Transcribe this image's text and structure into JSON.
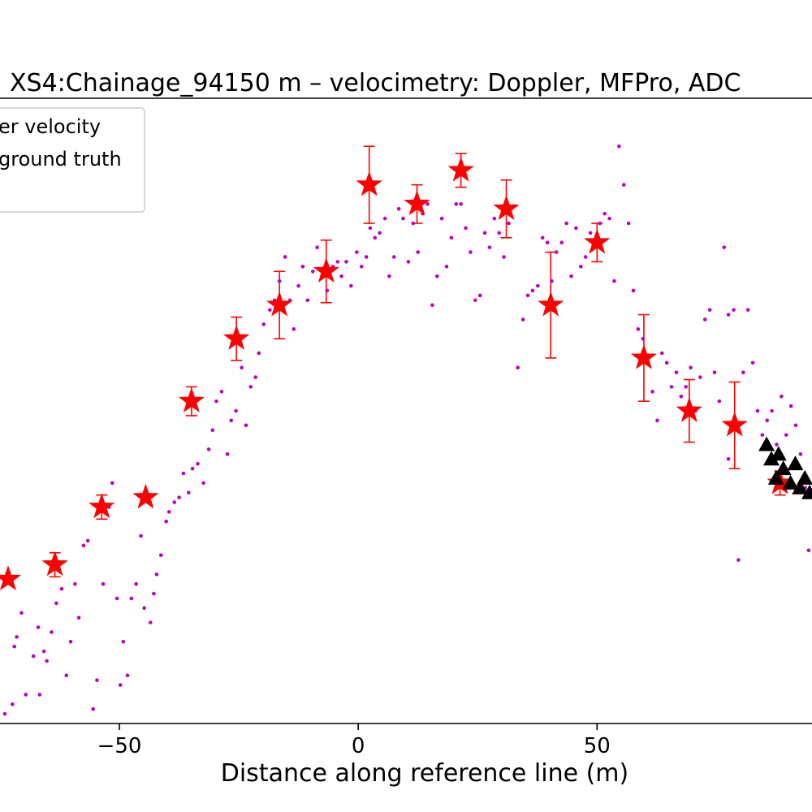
{
  "chart_data": {
    "type": "scatter",
    "title": "XS4:Chainage_94150 m – velocimetry: Doppler, MFPro, ADC",
    "xlabel": "Distance along reference line (m)",
    "ylabel": "",
    "xlim": [
      -75,
      95
    ],
    "ylim": [
      0,
      1.3
    ],
    "x_ticks": [
      -50,
      0,
      50
    ],
    "x_tick_labels": [
      "−50",
      "0",
      "50"
    ],
    "grid": false,
    "legend": {
      "placement": "top-left",
      "entries": [
        "er velocity",
        "ground truth"
      ]
    },
    "colors": {
      "stars": "#ff0000",
      "errorbars": "#ff0000",
      "dots": "#bf00bf",
      "triangles": "#000000"
    },
    "series": [
      {
        "marker": "star",
        "points": [
          {
            "x": -73.3,
            "y": 0.3,
            "err": 0
          },
          {
            "x": -63.5,
            "y": 0.33,
            "err": 0.025
          },
          {
            "x": -53.7,
            "y": 0.45,
            "err": 0.025
          },
          {
            "x": -44.5,
            "y": 0.47,
            "err": 0
          },
          {
            "x": -34.9,
            "y": 0.67,
            "err": 0.03
          },
          {
            "x": -25.5,
            "y": 0.8,
            "err": 0.045
          },
          {
            "x": -16.5,
            "y": 0.87,
            "err": 0.07
          },
          {
            "x": -6.7,
            "y": 0.94,
            "err": 0.065
          },
          {
            "x": 2.3,
            "y": 1.12,
            "err": 0.08
          },
          {
            "x": 12.3,
            "y": 1.08,
            "err": 0.04
          },
          {
            "x": 21.5,
            "y": 1.15,
            "err": 0.035
          },
          {
            "x": 31.0,
            "y": 1.07,
            "err": 0.06
          },
          {
            "x": 40.3,
            "y": 0.87,
            "err": 0.11
          },
          {
            "x": 50.0,
            "y": 1.0,
            "err": 0.04
          },
          {
            "x": 59.8,
            "y": 0.76,
            "err": 0.09
          },
          {
            "x": 69.3,
            "y": 0.65,
            "err": 0.065
          },
          {
            "x": 78.8,
            "y": 0.62,
            "err": 0.09
          },
          {
            "x": 88.3,
            "y": 0.5,
            "err": 0.025
          }
        ]
      },
      {
        "marker": "dot",
        "points": [
          {
            "x": -74,
            "y": 0.02
          },
          {
            "x": -72.4,
            "y": 0.04
          },
          {
            "x": -70.5,
            "y": 0.23
          },
          {
            "x": -71.5,
            "y": 0.18
          },
          {
            "x": -72,
            "y": 0.16
          },
          {
            "x": -69.6,
            "y": 0.06
          },
          {
            "x": -68,
            "y": 0.14
          },
          {
            "x": -67,
            "y": 0.2
          },
          {
            "x": -66.7,
            "y": 0.06
          },
          {
            "x": -65.8,
            "y": 0.15
          },
          {
            "x": -65.2,
            "y": 0.13
          },
          {
            "x": -64.2,
            "y": 0.19
          },
          {
            "x": -63.2,
            "y": 0.25
          },
          {
            "x": -62.1,
            "y": 0.28
          },
          {
            "x": -61.1,
            "y": 0.1
          },
          {
            "x": -60.2,
            "y": 0.17
          },
          {
            "x": -59.3,
            "y": 0.29
          },
          {
            "x": -58.5,
            "y": 0.22
          },
          {
            "x": -57.5,
            "y": 0.37
          },
          {
            "x": -56.6,
            "y": 0.38
          },
          {
            "x": -55.5,
            "y": 0.03
          },
          {
            "x": -54.7,
            "y": 0.09
          },
          {
            "x": -53.4,
            "y": 0.29
          },
          {
            "x": -52.2,
            "y": 0.45
          },
          {
            "x": -51.5,
            "y": 0.5
          },
          {
            "x": -50.5,
            "y": 0.26
          },
          {
            "x": -49.8,
            "y": 0.08
          },
          {
            "x": -49.2,
            "y": 0.17
          },
          {
            "x": -48.3,
            "y": 0.1
          },
          {
            "x": -47.5,
            "y": 0.26
          },
          {
            "x": -46.5,
            "y": 0.29
          },
          {
            "x": -45.5,
            "y": 0.39
          },
          {
            "x": -44.8,
            "y": 0.24
          },
          {
            "x": -43.5,
            "y": 0.21
          },
          {
            "x": -42.8,
            "y": 0.27
          },
          {
            "x": -42.2,
            "y": 0.31
          },
          {
            "x": -41.3,
            "y": 0.35
          },
          {
            "x": -40.2,
            "y": 0.42
          },
          {
            "x": -39.6,
            "y": 0.44
          },
          {
            "x": -38.5,
            "y": 0.46
          },
          {
            "x": -37.5,
            "y": 0.47
          },
          {
            "x": -36.6,
            "y": 0.52
          },
          {
            "x": -35.5,
            "y": 0.48
          },
          {
            "x": -34.7,
            "y": 0.53
          },
          {
            "x": -33.6,
            "y": 0.54
          },
          {
            "x": -32.4,
            "y": 0.5
          },
          {
            "x": -31.3,
            "y": 0.57
          },
          {
            "x": -30.5,
            "y": 0.61
          },
          {
            "x": -29.7,
            "y": 0.67
          },
          {
            "x": -28.6,
            "y": 0.69
          },
          {
            "x": -27.4,
            "y": 0.56
          },
          {
            "x": -26.6,
            "y": 0.63
          },
          {
            "x": -25.6,
            "y": 0.65
          },
          {
            "x": -24.4,
            "y": 0.74
          },
          {
            "x": -23.5,
            "y": 0.62
          },
          {
            "x": -22.5,
            "y": 0.7
          },
          {
            "x": -21.5,
            "y": 0.72
          },
          {
            "x": -20.8,
            "y": 0.77
          },
          {
            "x": -19.8,
            "y": 0.83
          },
          {
            "x": -18.5,
            "y": 0.86
          },
          {
            "x": -17.5,
            "y": 0.88
          },
          {
            "x": -16.5,
            "y": 0.92
          },
          {
            "x": -15.3,
            "y": 0.97
          },
          {
            "x": -14.3,
            "y": 0.88
          },
          {
            "x": -13.5,
            "y": 0.82
          },
          {
            "x": -12.5,
            "y": 0.91
          },
          {
            "x": -11.6,
            "y": 0.95
          },
          {
            "x": -10.6,
            "y": 0.88
          },
          {
            "x": -9.5,
            "y": 0.94
          },
          {
            "x": -8.6,
            "y": 0.99
          },
          {
            "x": -7.5,
            "y": 0.93
          },
          {
            "x": -6.5,
            "y": 0.9
          },
          {
            "x": -5.3,
            "y": 0.95
          },
          {
            "x": -4.3,
            "y": 0.96
          },
          {
            "x": -3.5,
            "y": 0.93
          },
          {
            "x": -2.5,
            "y": 0.96
          },
          {
            "x": -1.5,
            "y": 0.91
          },
          {
            "x": -0.3,
            "y": 0.98
          },
          {
            "x": 0.7,
            "y": 0.95
          },
          {
            "x": 1.7,
            "y": 0.97
          },
          {
            "x": 2.5,
            "y": 1.03
          },
          {
            "x": 3.5,
            "y": 1.01
          },
          {
            "x": 4.5,
            "y": 1.02
          },
          {
            "x": 5.6,
            "y": 1.05
          },
          {
            "x": 6.5,
            "y": 0.93
          },
          {
            "x": 7.5,
            "y": 0.97
          },
          {
            "x": 8.5,
            "y": 1.07
          },
          {
            "x": 9.4,
            "y": 1.05
          },
          {
            "x": 10.5,
            "y": 0.96
          },
          {
            "x": 11.5,
            "y": 1.04
          },
          {
            "x": 12.5,
            "y": 0.98
          },
          {
            "x": 13.5,
            "y": 1.06
          },
          {
            "x": 14.5,
            "y": 1.08
          },
          {
            "x": 15.5,
            "y": 0.87
          },
          {
            "x": 16.5,
            "y": 0.93
          },
          {
            "x": 17.5,
            "y": 1.05
          },
          {
            "x": 18.5,
            "y": 0.95
          },
          {
            "x": 19.5,
            "y": 1.01
          },
          {
            "x": 20.5,
            "y": 1.08
          },
          {
            "x": 21.5,
            "y": 1.08
          },
          {
            "x": 22.5,
            "y": 1.03
          },
          {
            "x": 23.5,
            "y": 0.98
          },
          {
            "x": 24.5,
            "y": 0.88
          },
          {
            "x": 25.5,
            "y": 0.89
          },
          {
            "x": 26.5,
            "y": 1.02
          },
          {
            "x": 27.5,
            "y": 0.99
          },
          {
            "x": 28.5,
            "y": 1.05
          },
          {
            "x": 29.5,
            "y": 1.02
          },
          {
            "x": 30.5,
            "y": 0.97
          },
          {
            "x": 31.5,
            "y": 1.04
          },
          {
            "x": 33.4,
            "y": 0.74
          },
          {
            "x": 34.5,
            "y": 0.84
          },
          {
            "x": 35.5,
            "y": 0.89
          },
          {
            "x": 36.5,
            "y": 0.9
          },
          {
            "x": 37.6,
            "y": 0.91
          },
          {
            "x": 38.6,
            "y": 1.01
          },
          {
            "x": 39.6,
            "y": 1.0
          },
          {
            "x": 40.5,
            "y": 0.92
          },
          {
            "x": 41.5,
            "y": 0.98
          },
          {
            "x": 42.6,
            "y": 1.0
          },
          {
            "x": 43.6,
            "y": 1.04
          },
          {
            "x": 44.6,
            "y": 0.93
          },
          {
            "x": 45.6,
            "y": 1.03
          },
          {
            "x": 46.6,
            "y": 0.95
          },
          {
            "x": 47.6,
            "y": 0.97
          },
          {
            "x": 48.6,
            "y": 1.02
          },
          {
            "x": 49.6,
            "y": 1.0
          },
          {
            "x": 50.6,
            "y": 1.04
          },
          {
            "x": 51.6,
            "y": 1.06
          },
          {
            "x": 52.6,
            "y": 1.05
          },
          {
            "x": 53.6,
            "y": 0.92
          },
          {
            "x": 54.6,
            "y": 1.2
          },
          {
            "x": 55.6,
            "y": 1.12
          },
          {
            "x": 56.6,
            "y": 1.04
          },
          {
            "x": 57.6,
            "y": 0.9
          },
          {
            "x": 58.6,
            "y": 0.82
          },
          {
            "x": 59.6,
            "y": 0.8
          },
          {
            "x": 60.6,
            "y": 0.75
          },
          {
            "x": 61.6,
            "y": 0.69
          },
          {
            "x": 62.6,
            "y": 0.63
          },
          {
            "x": 63.6,
            "y": 0.77
          },
          {
            "x": 64.6,
            "y": 0.75
          },
          {
            "x": 65.6,
            "y": 0.7
          },
          {
            "x": 66.6,
            "y": 0.73
          },
          {
            "x": 67.6,
            "y": 0.68
          },
          {
            "x": 68.6,
            "y": 0.7
          },
          {
            "x": 69.6,
            "y": 0.74
          },
          {
            "x": 70.6,
            "y": 0.65
          },
          {
            "x": 71.6,
            "y": 0.72
          },
          {
            "x": 72.6,
            "y": 0.84
          },
          {
            "x": 73.6,
            "y": 0.86
          },
          {
            "x": 74.6,
            "y": 0.73
          },
          {
            "x": 75.6,
            "y": 0.67
          },
          {
            "x": 76.6,
            "y": 0.99
          },
          {
            "x": 77.5,
            "y": 0.55
          },
          {
            "x": 77.5,
            "y": 0.85
          },
          {
            "x": 78.6,
            "y": 0.86
          },
          {
            "x": 79.6,
            "y": 0.34
          },
          {
            "x": 80.6,
            "y": 0.73
          },
          {
            "x": 81.6,
            "y": 0.86
          },
          {
            "x": 82.6,
            "y": 0.75
          },
          {
            "x": 83.6,
            "y": 0.65
          },
          {
            "x": 84.6,
            "y": 0.6
          },
          {
            "x": 85.6,
            "y": 0.63
          },
          {
            "x": 86.6,
            "y": 0.65
          },
          {
            "x": 87.6,
            "y": 0.58
          },
          {
            "x": 88.6,
            "y": 0.68
          },
          {
            "x": 89.6,
            "y": 0.6
          },
          {
            "x": 90.6,
            "y": 0.66
          },
          {
            "x": 91.6,
            "y": 0.62
          },
          {
            "x": 92.6,
            "y": 0.56
          },
          {
            "x": 93.6,
            "y": 0.49
          },
          {
            "x": 94.3,
            "y": 0.36
          }
        ]
      },
      {
        "marker": "triangle",
        "points": [
          {
            "x": 85.5,
            "y": 0.58
          },
          {
            "x": 86.5,
            "y": 0.55
          },
          {
            "x": 87.5,
            "y": 0.51
          },
          {
            "x": 88.0,
            "y": 0.56
          },
          {
            "x": 89.0,
            "y": 0.53
          },
          {
            "x": 90.5,
            "y": 0.5
          },
          {
            "x": 91.5,
            "y": 0.54
          },
          {
            "x": 92.5,
            "y": 0.49
          },
          {
            "x": 93.5,
            "y": 0.51
          },
          {
            "x": 94.5,
            "y": 0.48
          }
        ]
      }
    ]
  }
}
